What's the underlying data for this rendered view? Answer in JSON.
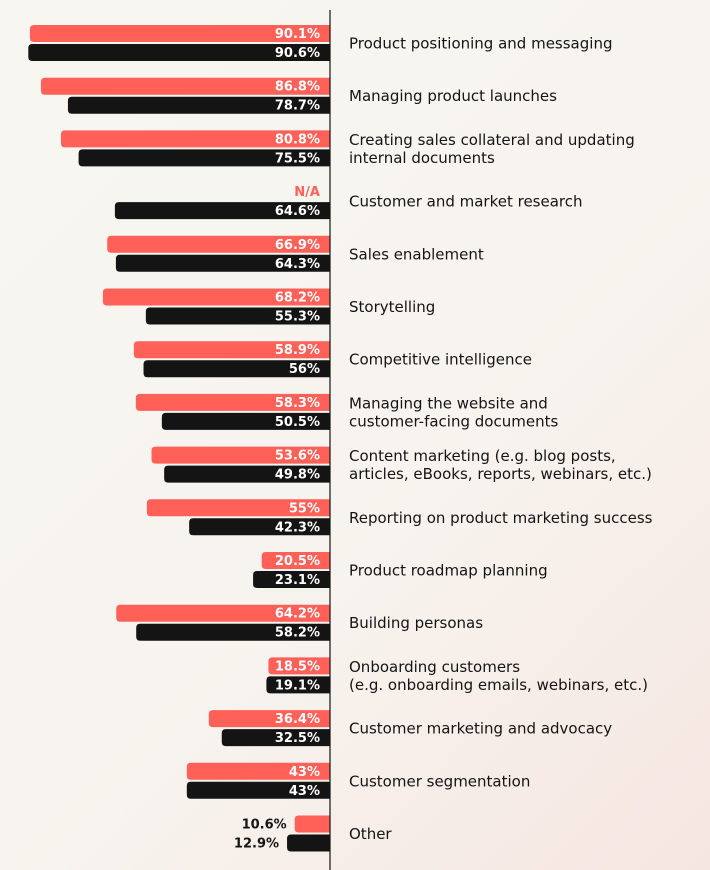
{
  "colors": {
    "primary": "#ff6058",
    "secondary": "#141414",
    "axis": "#141414",
    "na_text": "#ff6058"
  },
  "chart_data": {
    "type": "bar",
    "orientation": "horizontal",
    "direction": "bars extend leftward from axis",
    "xlim": [
      0,
      100
    ],
    "grid": false,
    "legend": "none",
    "categories": [
      "Product positioning and messaging",
      "Managing product launches",
      "Creating sales collateral and updating internal documents",
      "Customer and market research",
      "Sales enablement",
      "Storytelling",
      "Competitive intelligence",
      "Managing the website and customer-facing documents",
      "Content marketing (e.g. blog posts, articles, eBooks, reports, webinars, etc.)",
      "Reporting on product marketing success",
      "Product roadmap planning",
      "Building personas",
      "Onboarding customers (e.g. onboarding emails, webinars, etc.)",
      "Customer marketing and advocacy",
      "Customer segmentation",
      "Other"
    ],
    "category_lines": [
      [
        "Product positioning and messaging"
      ],
      [
        "Managing product launches"
      ],
      [
        "Creating sales collateral and updating",
        "internal documents"
      ],
      [
        "Customer and market research"
      ],
      [
        "Sales enablement"
      ],
      [
        "Storytelling"
      ],
      [
        "Competitive intelligence"
      ],
      [
        "Managing the website and",
        "customer-facing documents"
      ],
      [
        "Content marketing (e.g. blog posts,",
        "articles, eBooks, reports, webinars, etc.)"
      ],
      [
        "Reporting on product marketing success"
      ],
      [
        "Product roadmap planning"
      ],
      [
        "Building personas"
      ],
      [
        "Onboarding customers",
        "(e.g. onboarding emails, webinars, etc.)"
      ],
      [
        "Customer marketing and advocacy"
      ],
      [
        "Customer segmentation"
      ],
      [
        "Other"
      ]
    ],
    "series": [
      {
        "values": [
          90.1,
          86.8,
          80.8,
          null,
          66.9,
          68.2,
          58.9,
          58.3,
          53.6,
          55,
          20.5,
          64.2,
          18.5,
          36.4,
          43,
          10.6
        ],
        "labels": [
          "90.1%",
          "86.8%",
          "80.8%",
          "N/A",
          "66.9%",
          "68.2%",
          "58.9%",
          "58.3%",
          "53.6%",
          "55%",
          "20.5%",
          "64.2%",
          "18.5%",
          "36.4%",
          "43%",
          "10.6%"
        ]
      },
      {
        "values": [
          90.6,
          78.7,
          75.5,
          64.6,
          64.3,
          55.3,
          56,
          50.5,
          49.8,
          42.3,
          23.1,
          58.2,
          19.1,
          32.5,
          43,
          12.9
        ],
        "labels": [
          "90.6%",
          "78.7%",
          "75.5%",
          "64.6%",
          "64.3%",
          "55.3%",
          "56%",
          "50.5%",
          "49.8%",
          "42.3%",
          "23.1%",
          "58.2%",
          "19.1%",
          "32.5%",
          "43%",
          "12.9%"
        ]
      }
    ]
  }
}
